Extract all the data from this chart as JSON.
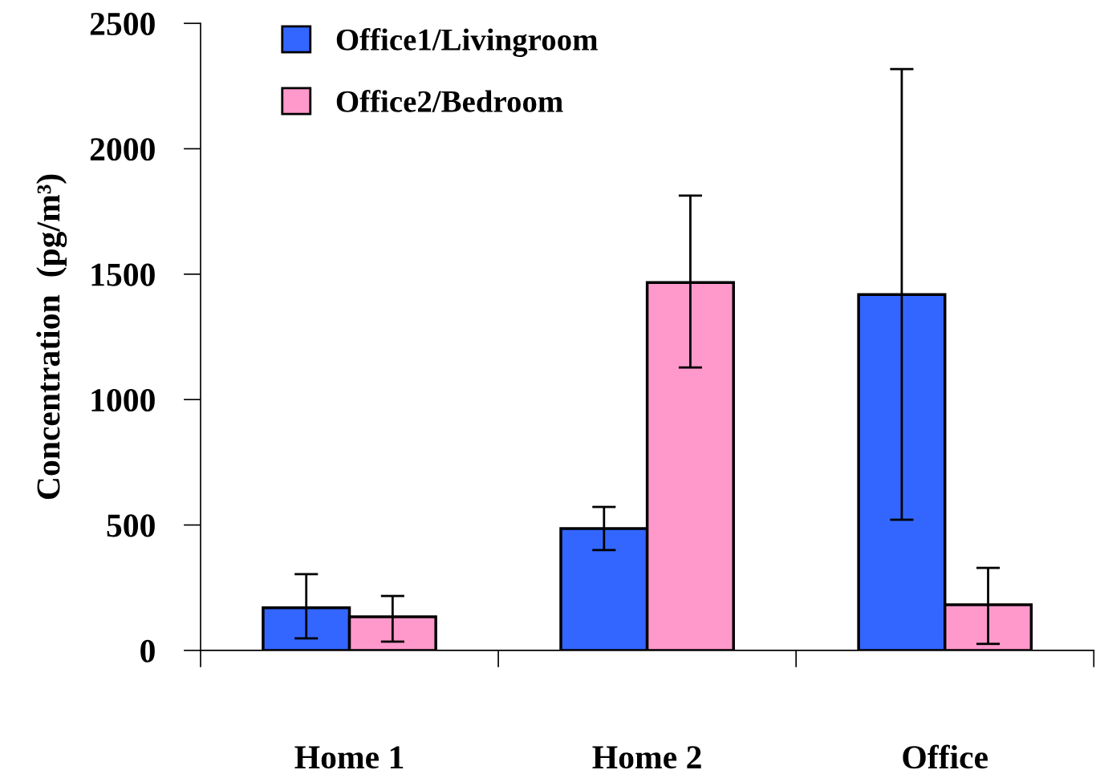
{
  "chart_data": {
    "type": "bar",
    "ylabel": "Concentration  (pg/m³)",
    "categories": [
      "Home 1",
      "Home 2",
      "Office"
    ],
    "series": [
      {
        "name": "Office1/Livingroom",
        "color": "#3366ff",
        "values": [
          170,
          486,
          1419
        ],
        "errors": [
          [
            48,
            304
          ],
          [
            400,
            572
          ],
          [
            521,
            2318
          ]
        ]
      },
      {
        "name": "Office2/Bedroom",
        "color": "#ff99cc",
        "values": [
          134,
          1467,
          182
        ],
        "errors": [
          [
            35,
            217
          ],
          [
            1128,
            1813
          ],
          [
            26,
            329
          ]
        ]
      }
    ],
    "ylim": [
      0,
      2500
    ],
    "yticks": [
      0,
      500,
      1000,
      1500,
      2000,
      2500
    ],
    "grid": false,
    "legend": "top left"
  }
}
